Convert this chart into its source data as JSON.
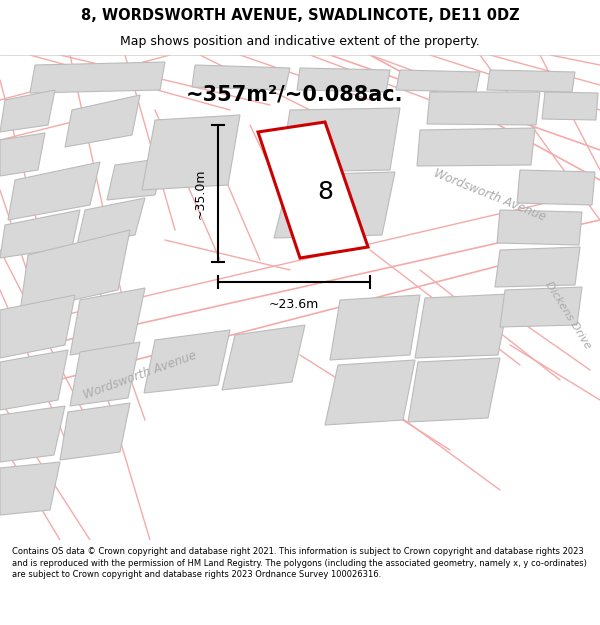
{
  "title_line1": "8, WORDSWORTH AVENUE, SWADLINCOTE, DE11 0DZ",
  "title_line2": "Map shows position and indicative extent of the property.",
  "area_text": "~357m²/~0.088ac.",
  "label_8": "8",
  "dim_height": "~35.0m",
  "dim_width": "~23.6m",
  "road_label_wa1": "Wordsworth Avenue",
  "road_label_wa2": "Wordsworth Avenue",
  "road_label_dd": "Dickens Drive",
  "footer_text": "Contains OS data © Crown copyright and database right 2021. This information is subject to Crown copyright and database rights 2023 and is reproduced with the permission of HM Land Registry. The polygons (including the associated geometry, namely x, y co-ordinates) are subject to Crown copyright and database rights 2023 Ordnance Survey 100026316.",
  "plot_color_red": "#cc0000",
  "road_line_color": "#f5aaaa",
  "building_fill": "#d8d8d8",
  "building_edge": "#bbbbbb",
  "map_bg": "#ffffff",
  "title_bg": "#ffffff",
  "footer_bg": "#ffffff",
  "figsize": [
    6.0,
    6.25
  ],
  "dpi": 100
}
